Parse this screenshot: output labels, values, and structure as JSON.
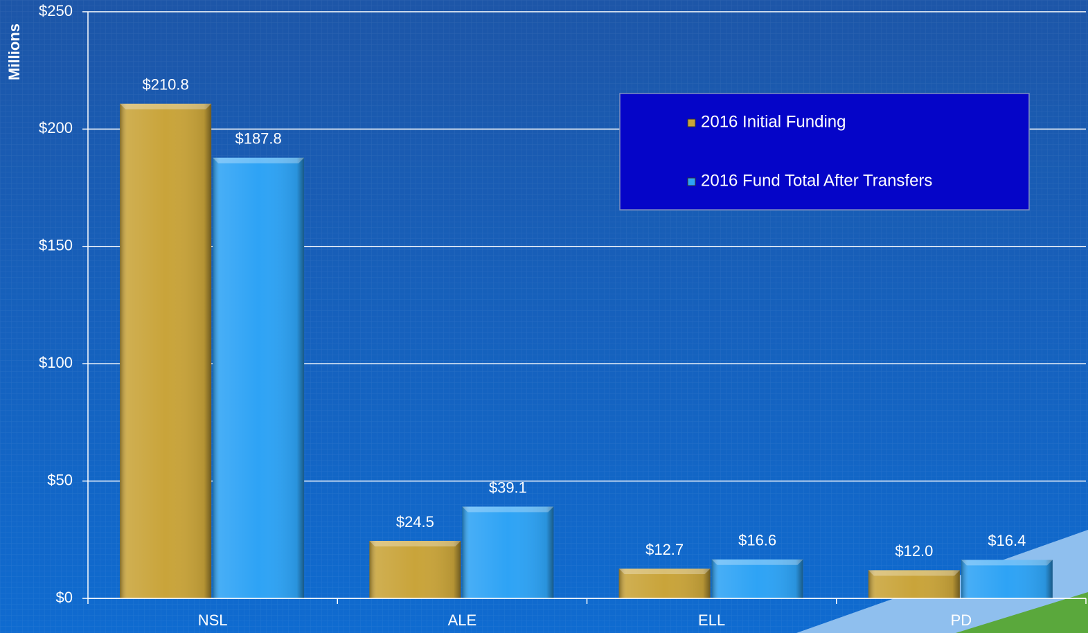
{
  "chart_data": {
    "type": "bar",
    "y_label": "Millions",
    "categories": [
      "NSL",
      "ALE",
      "ELL",
      "PD"
    ],
    "series": [
      {
        "name": "2016 Initial Funding",
        "color": "#c9a43a",
        "values": [
          210.8,
          24.5,
          12.7,
          12.0
        ],
        "value_labels": [
          "$210.8",
          "$24.5",
          "$12.7",
          "$12.0"
        ]
      },
      {
        "name": "2016 Fund Total After Transfers",
        "color": "#2ea3f5",
        "values": [
          187.8,
          39.1,
          16.6,
          16.4
        ],
        "value_labels": [
          "$187.8",
          "$39.1",
          "$16.6",
          "$16.4"
        ]
      }
    ],
    "ylim": [
      0,
      250
    ],
    "yticks": [
      {
        "value": 0,
        "label": "$0"
      },
      {
        "value": 50,
        "label": "$50"
      },
      {
        "value": 100,
        "label": "$100"
      },
      {
        "value": 150,
        "label": "$150"
      },
      {
        "value": 200,
        "label": "$200"
      },
      {
        "value": 250,
        "label": "$250"
      }
    ],
    "grid": true,
    "legend": "upper right"
  }
}
